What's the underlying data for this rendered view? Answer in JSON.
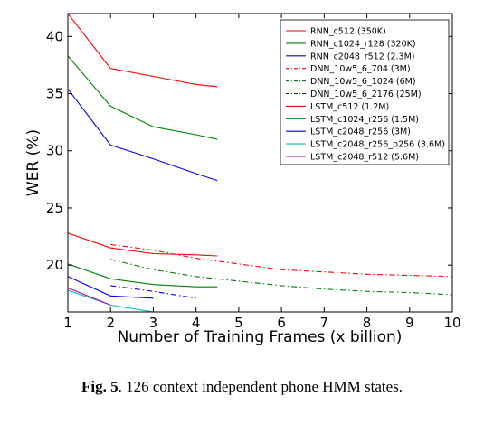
{
  "caption": {
    "label": "Fig. 5",
    "text": ". 126 context independent phone HMM states."
  },
  "chart_data": {
    "type": "line",
    "xlabel": "Number of Training Frames (x billion)",
    "ylabel": "WER (%)",
    "xlim": [
      1,
      10
    ],
    "ylim": [
      15.9,
      42
    ],
    "xticks": [
      1,
      2,
      3,
      4,
      5,
      6,
      7,
      8,
      9,
      10
    ],
    "yticks": [
      20,
      25,
      30,
      35,
      40
    ],
    "grid": false,
    "legend_position": "top-right",
    "series": [
      {
        "name": "RNN_c512 (350K)",
        "color": "#ff0000",
        "style": "solid",
        "x": [
          1,
          2,
          3,
          4,
          4.5
        ],
        "y": [
          42.0,
          37.2,
          36.5,
          35.8,
          35.6
        ]
      },
      {
        "name": "RNN_c1024_r128 (320K)",
        "color": "#008000",
        "style": "solid",
        "x": [
          1,
          2,
          3,
          4,
          4.5
        ],
        "y": [
          38.3,
          33.9,
          32.1,
          31.4,
          31.0
        ]
      },
      {
        "name": "RNN_c2048_r512 (2.3M)",
        "color": "#0000ff",
        "style": "solid",
        "x": [
          1,
          2,
          3,
          4,
          4.5
        ],
        "y": [
          35.4,
          30.5,
          29.3,
          28.0,
          27.4
        ]
      },
      {
        "name": "DNN_10w5_6_704 (3M)",
        "color": "#ff0000",
        "style": "dashdot",
        "x": [
          2,
          3,
          4,
          5,
          6,
          7,
          8,
          9,
          10
        ],
        "y": [
          21.8,
          21.3,
          20.6,
          20.1,
          19.6,
          19.4,
          19.2,
          19.1,
          19.0
        ]
      },
      {
        "name": "DNN_10w5_6_1024 (6M)",
        "color": "#008000",
        "style": "dashdot",
        "x": [
          2,
          3,
          4,
          5,
          6,
          7,
          8,
          9,
          10
        ],
        "y": [
          20.5,
          19.6,
          19.0,
          18.6,
          18.2,
          17.9,
          17.7,
          17.6,
          17.4
        ]
      },
      {
        "name": "DNN_10w5_6_2176 (25M)",
        "color": "#0000ff",
        "style": "dashdot",
        "x": [
          2,
          3,
          4
        ],
        "y": [
          18.2,
          17.7,
          17.1
        ]
      },
      {
        "name": "LSTM_c512 (1.2M)",
        "color": "#ff0000",
        "style": "solid",
        "x": [
          1,
          2,
          3,
          4,
          4.5
        ],
        "y": [
          22.8,
          21.5,
          21.0,
          20.9,
          20.8
        ]
      },
      {
        "name": "LSTM_c1024_r256 (1.5M)",
        "color": "#008000",
        "style": "solid",
        "x": [
          1,
          2,
          3,
          4,
          4.5
        ],
        "y": [
          20.1,
          18.8,
          18.3,
          18.1,
          18.1
        ]
      },
      {
        "name": "LSTM_c2048_r256 (3M)",
        "color": "#0000ff",
        "style": "solid",
        "x": [
          1,
          2,
          3
        ],
        "y": [
          19.0,
          17.3,
          17.1
        ]
      },
      {
        "name": "LSTM_c2048_r256_p256 (3.6M)",
        "color": "#00bfbf",
        "style": "solid",
        "x": [
          1,
          2,
          3
        ],
        "y": [
          17.8,
          16.5,
          15.9
        ]
      },
      {
        "name": "LSTM_c2048_r512 (5.6M)",
        "color": "#bf00bf",
        "style": "solid",
        "x": [
          1,
          2
        ],
        "y": [
          18.0,
          16.5
        ]
      }
    ]
  }
}
